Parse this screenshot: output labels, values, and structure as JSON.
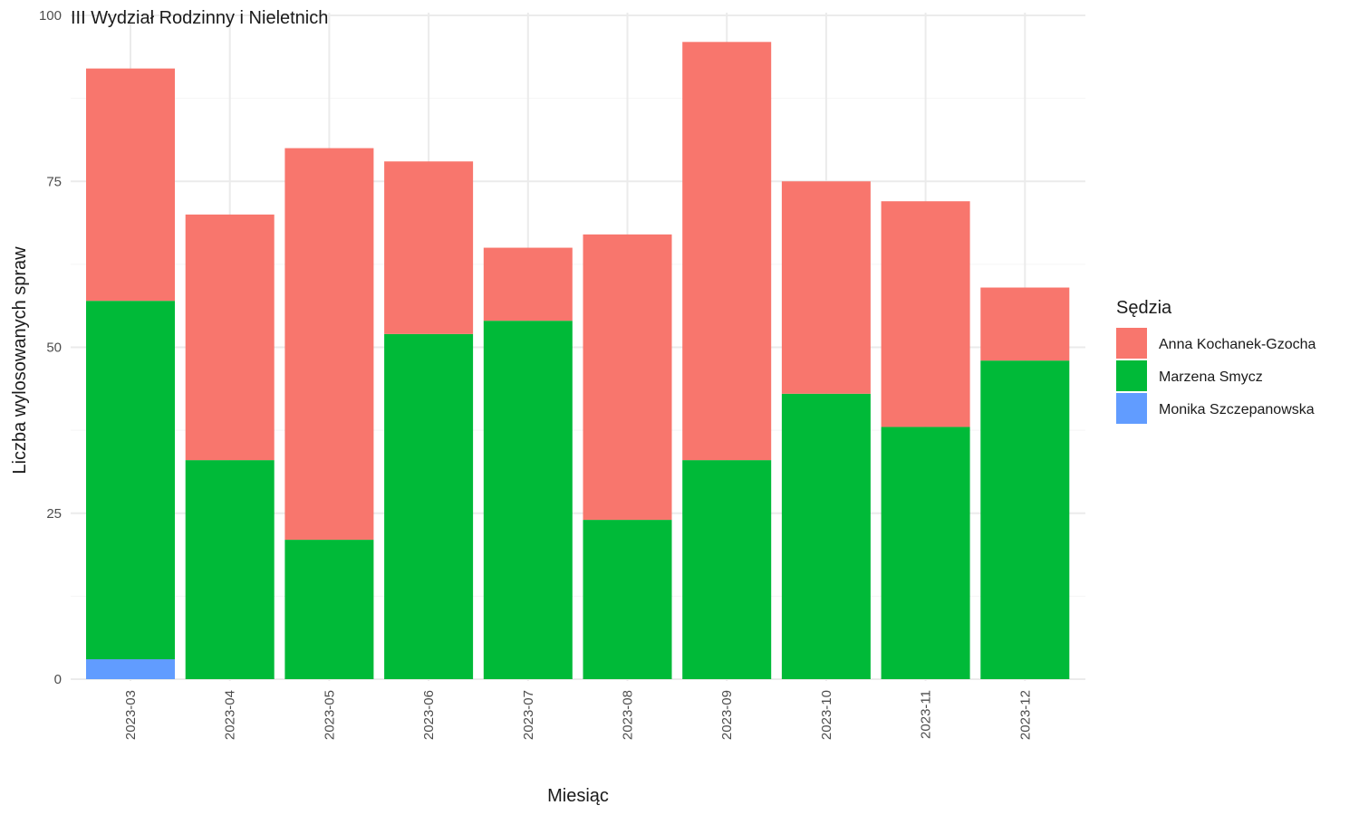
{
  "chart_data": {
    "type": "bar",
    "stacked": true,
    "title": "III Wydział Rodzinny i Nieletnich",
    "xlabel": "Miesiąc",
    "ylabel": "Liczba wylosowanych spraw",
    "ylim": [
      0,
      100
    ],
    "yticks": [
      0,
      25,
      50,
      75,
      100
    ],
    "grid": true,
    "categories": [
      "2023-03",
      "2023-04",
      "2023-05",
      "2023-06",
      "2023-07",
      "2023-08",
      "2023-09",
      "2023-10",
      "2023-11",
      "2023-12"
    ],
    "legend": {
      "title": "Sędzia",
      "position": "right"
    },
    "series": [
      {
        "name": "Monika Szczepanowska",
        "color": "#619CFF",
        "values": [
          3,
          0,
          0,
          0,
          0,
          0,
          0,
          0,
          0,
          0
        ]
      },
      {
        "name": "Marzena Smycz",
        "color": "#00BA38",
        "values": [
          54,
          33,
          21,
          52,
          54,
          24,
          33,
          43,
          38,
          48
        ]
      },
      {
        "name": "Anna Kochanek-Gzocha",
        "color": "#F8766D",
        "values": [
          35,
          37,
          59,
          26,
          11,
          43,
          63,
          32,
          34,
          11
        ]
      }
    ],
    "legend_order": [
      "Anna Kochanek-Gzocha",
      "Marzena Smycz",
      "Monika Szczepanowska"
    ]
  }
}
